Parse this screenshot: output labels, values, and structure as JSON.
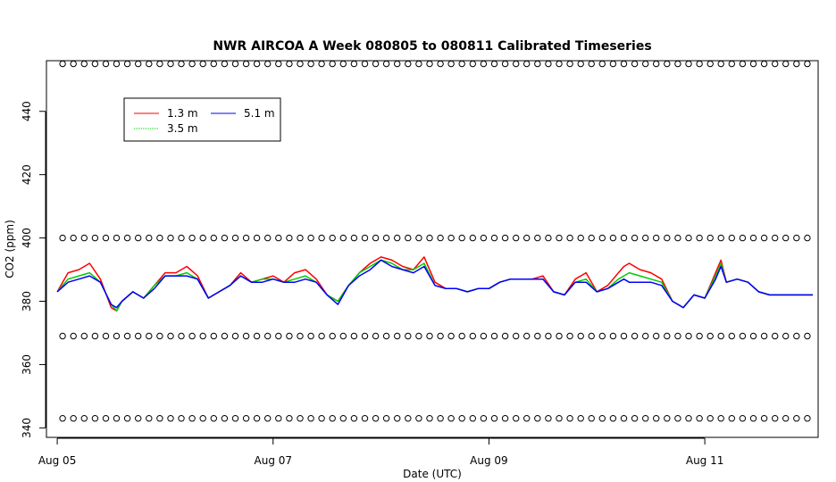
{
  "chart_data": {
    "type": "line",
    "title": "NWR AIRCOA A  Week 080805 to 080811  Calibrated Timeseries",
    "xlabel": "Date (UTC)",
    "ylabel": "CO2 (ppm)",
    "xlim": [
      -0.1,
      7.05
    ],
    "ylim": [
      337,
      456
    ],
    "x_ticks": [
      0,
      2,
      4,
      6
    ],
    "x_tick_labels": [
      "Aug 05",
      "Aug 07",
      "Aug 09",
      "Aug 11"
    ],
    "y_ticks": [
      340,
      360,
      380,
      400,
      420,
      440
    ],
    "y_tick_labels": [
      "340",
      "360",
      "380",
      "400",
      "420",
      "440"
    ],
    "x_unit": "days since Aug 05 00:00 UTC",
    "legend_position": "top-left",
    "grid": false,
    "series": [
      {
        "name": "1.3 m",
        "color": "#ff0000",
        "x": [
          0,
          0.1,
          0.2,
          0.3,
          0.4,
          0.5,
          0.55,
          0.6,
          0.7,
          0.8,
          0.9,
          1.0,
          1.1,
          1.2,
          1.3,
          1.4,
          1.5,
          1.6,
          1.7,
          1.8,
          1.9,
          2.0,
          2.1,
          2.2,
          2.3,
          2.4,
          2.5,
          2.6,
          2.7,
          2.8,
          2.9,
          3.0,
          3.1,
          3.2,
          3.3,
          3.4,
          3.5,
          3.6,
          3.7,
          3.8,
          3.9,
          4.0,
          4.1,
          4.2,
          4.3,
          4.4,
          4.5,
          4.6,
          4.7,
          4.8,
          4.9,
          5.0,
          5.1,
          5.2,
          5.25,
          5.3,
          5.4,
          5.5,
          5.6,
          5.7,
          5.8,
          5.9,
          6.0,
          6.1,
          6.15,
          6.2,
          6.3,
          6.4,
          6.5,
          6.6,
          6.7,
          6.8,
          6.9,
          7.0
        ],
        "y": [
          383,
          389,
          390,
          392,
          387,
          378,
          377,
          380,
          383,
          381,
          385,
          389,
          389,
          391,
          388,
          381,
          383,
          385,
          389,
          386,
          387,
          388,
          386,
          389,
          390,
          387,
          382,
          380,
          385,
          389,
          392,
          394,
          393,
          391,
          390,
          394,
          386,
          384,
          384,
          383,
          384,
          384,
          386,
          387,
          387,
          387,
          388,
          383,
          382,
          387,
          389,
          383,
          385,
          389,
          391,
          392,
          390,
          389,
          387,
          380,
          378,
          382,
          381,
          389,
          393,
          386,
          387,
          386,
          383,
          382,
          382,
          382,
          382,
          382
        ]
      },
      {
        "name": "3.5 m",
        "color": "#00cc00",
        "x": [
          0,
          0.1,
          0.2,
          0.3,
          0.4,
          0.5,
          0.55,
          0.6,
          0.7,
          0.8,
          0.9,
          1.0,
          1.1,
          1.2,
          1.3,
          1.4,
          1.5,
          1.6,
          1.7,
          1.8,
          1.9,
          2.0,
          2.1,
          2.2,
          2.3,
          2.4,
          2.5,
          2.6,
          2.7,
          2.8,
          2.9,
          3.0,
          3.1,
          3.2,
          3.3,
          3.4,
          3.5,
          3.6,
          3.7,
          3.8,
          3.9,
          4.0,
          4.1,
          4.2,
          4.3,
          4.4,
          4.5,
          4.6,
          4.7,
          4.8,
          4.9,
          5.0,
          5.1,
          5.2,
          5.25,
          5.3,
          5.4,
          5.5,
          5.6,
          5.7,
          5.8,
          5.9,
          6.0,
          6.1,
          6.15,
          6.2,
          6.3,
          6.4,
          6.5,
          6.6,
          6.7,
          6.8,
          6.9,
          7.0
        ],
        "y": [
          383,
          387,
          388,
          389,
          386,
          379,
          377,
          380,
          383,
          381,
          385,
          388,
          388,
          389,
          387,
          381,
          383,
          385,
          388,
          386,
          387,
          387,
          386,
          387,
          388,
          386,
          382,
          380,
          385,
          389,
          391,
          393,
          392,
          390,
          390,
          392,
          385,
          384,
          384,
          383,
          384,
          384,
          386,
          387,
          387,
          387,
          387,
          383,
          382,
          386,
          387,
          383,
          384,
          387,
          388,
          389,
          388,
          387,
          386,
          380,
          378,
          382,
          381,
          388,
          392,
          386,
          387,
          386,
          383,
          382,
          382,
          382,
          382,
          382
        ]
      },
      {
        "name": "5.1 m",
        "color": "#0000ff",
        "x": [
          0,
          0.1,
          0.2,
          0.3,
          0.4,
          0.5,
          0.55,
          0.6,
          0.7,
          0.8,
          0.9,
          1.0,
          1.1,
          1.2,
          1.3,
          1.4,
          1.5,
          1.6,
          1.7,
          1.8,
          1.9,
          2.0,
          2.1,
          2.2,
          2.3,
          2.4,
          2.5,
          2.6,
          2.7,
          2.8,
          2.9,
          3.0,
          3.1,
          3.2,
          3.3,
          3.4,
          3.5,
          3.6,
          3.7,
          3.8,
          3.9,
          4.0,
          4.1,
          4.2,
          4.3,
          4.4,
          4.5,
          4.6,
          4.7,
          4.8,
          4.9,
          5.0,
          5.1,
          5.2,
          5.25,
          5.3,
          5.4,
          5.5,
          5.6,
          5.7,
          5.8,
          5.9,
          6.0,
          6.1,
          6.15,
          6.2,
          6.3,
          6.4,
          6.5,
          6.6,
          6.7,
          6.8,
          6.9,
          7.0
        ],
        "y": [
          383,
          386,
          387,
          388,
          386,
          379,
          378,
          380,
          383,
          381,
          384,
          388,
          388,
          388,
          387,
          381,
          383,
          385,
          388,
          386,
          386,
          387,
          386,
          386,
          387,
          386,
          382,
          379,
          385,
          388,
          390,
          393,
          391,
          390,
          389,
          391,
          385,
          384,
          384,
          383,
          384,
          384,
          386,
          387,
          387,
          387,
          387,
          383,
          382,
          386,
          386,
          383,
          384,
          386,
          387,
          386,
          386,
          386,
          385,
          380,
          378,
          382,
          381,
          387,
          391,
          386,
          387,
          386,
          383,
          382,
          382,
          382,
          382,
          382
        ]
      }
    ],
    "calibration_markers": {
      "levels": [
        455,
        400,
        369,
        343
      ],
      "start": 0.05,
      "spacing": 0.1,
      "count": 70
    }
  },
  "legend": {
    "items": [
      {
        "label": "1.3 m",
        "color": "#ff0000"
      },
      {
        "label": "5.1 m",
        "color": "#0000ff"
      },
      {
        "label": "3.5 m",
        "color": "#00cc00"
      }
    ]
  }
}
